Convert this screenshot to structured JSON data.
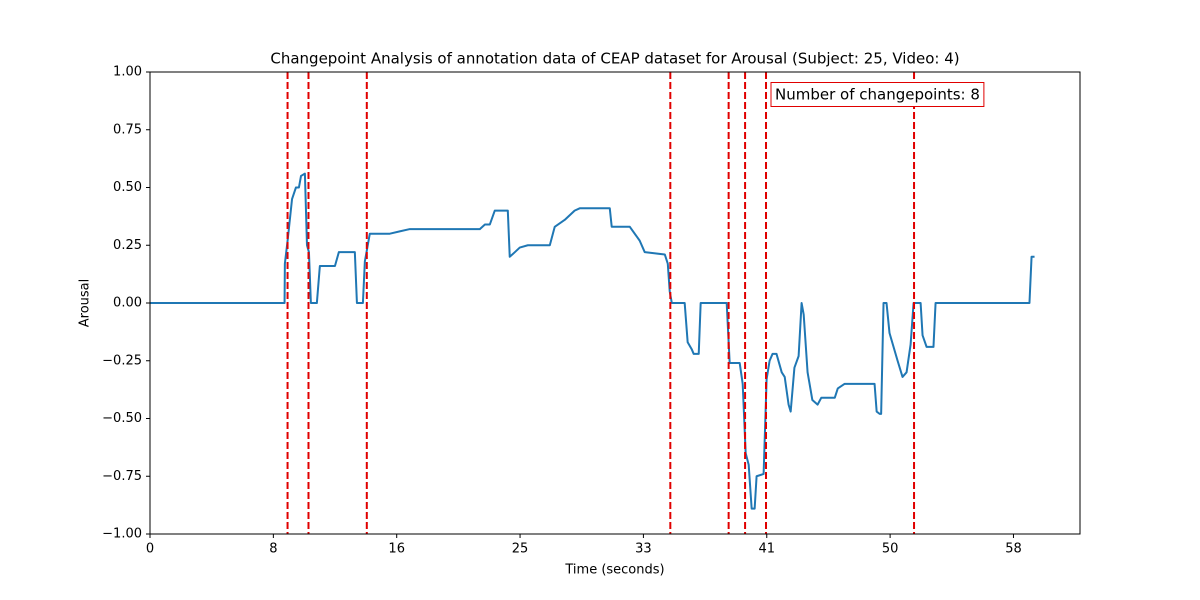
{
  "chart_data": {
    "type": "line",
    "title": "Changepoint Analysis of annotation data of CEAP dataset for Arousal (Subject: 25, Video: 4)",
    "x_label": "Time (seconds)",
    "y_label": "Arousal",
    "xlim": [
      0,
      62.2
    ],
    "ylim": [
      -1,
      1
    ],
    "xticks": [
      0,
      {
        "value": 8.25,
        "label": "8"
      },
      {
        "value": 16.5,
        "label": "16"
      },
      {
        "value": 24.75,
        "label": "25"
      },
      33,
      {
        "value": 41.25,
        "label": "41"
      },
      {
        "value": 49.5,
        "label": "50"
      },
      {
        "value": 57.75,
        "label": "58"
      }
    ],
    "yticks": [
      {
        "value": -1,
        "label": "−1.00"
      },
      {
        "value": -0.75,
        "label": "−0.75"
      },
      {
        "value": -0.5,
        "label": "−0.50"
      },
      {
        "value": -0.25,
        "label": "−0.25"
      },
      {
        "value": 0,
        "label": "0.00"
      },
      {
        "value": 0.25,
        "label": "0.25"
      },
      {
        "value": 0.5,
        "label": "0.50"
      },
      {
        "value": 0.75,
        "label": "0.75"
      },
      {
        "value": 1,
        "label": "1.00"
      }
    ],
    "x": [
      0,
      9.0,
      9.02,
      9.22,
      9.5,
      9.76,
      9.96,
      10.1,
      10.36,
      10.5,
      10.63,
      10.76,
      11.16,
      11.36,
      12.37,
      12.63,
      13.7,
      13.84,
      14.24,
      14.37,
      14.7,
      16.04,
      16.7,
      17.38,
      19.4,
      22.06,
      22.4,
      22.73,
      23.06,
      23.93,
      24.06,
      24.4,
      24.73,
      25.27,
      26.74,
      27.07,
      27.74,
      28.07,
      28.4,
      28.74,
      30.75,
      30.88,
      32.09,
      32.75,
      33.09,
      34.43,
      34.63,
      34.76,
      34.9,
      35.76,
      35.96,
      36.23,
      36.36,
      36.7,
      36.83,
      38.57,
      38.77,
      39.44,
      39.64,
      39.84,
      40.04,
      40.24,
      40.44,
      40.57,
      41.04,
      41.24,
      41.44,
      41.64,
      41.9,
      42.25,
      42.45,
      42.71,
      42.85,
      43.1,
      43.38,
      43.58,
      43.72,
      43.98,
      44.3,
      44.65,
      44.9,
      45.8,
      46.0,
      46.46,
      48.46,
      48.6,
      48.8,
      48.9,
      49.06,
      49.26,
      49.46,
      50.0,
      50.33,
      50.6,
      50.87,
      51.07,
      51.54,
      51.67,
      51.94,
      52.4,
      52.54,
      58.82,
      58.96,
      59.16
    ],
    "series": [
      {
        "color": "#1f77b4",
        "values": [
          0,
          0,
          0.17,
          0.28,
          0.45,
          0.5,
          0.5,
          0.55,
          0.56,
          0.25,
          0.22,
          0,
          0,
          0.16,
          0.16,
          0.22,
          0.22,
          0,
          0,
          0.18,
          0.3,
          0.3,
          0.31,
          0.32,
          0.32,
          0.32,
          0.34,
          0.34,
          0.4,
          0.4,
          0.2,
          0.22,
          0.24,
          0.25,
          0.25,
          0.33,
          0.36,
          0.38,
          0.4,
          0.41,
          0.41,
          0.33,
          0.33,
          0.27,
          0.22,
          0.21,
          0.17,
          0.05,
          0,
          0,
          -0.17,
          -0.2,
          -0.22,
          -0.22,
          0,
          0,
          -0.26,
          -0.26,
          -0.35,
          -0.65,
          -0.7,
          -0.89,
          -0.89,
          -0.75,
          -0.74,
          -0.33,
          -0.25,
          -0.22,
          -0.22,
          -0.3,
          -0.32,
          -0.44,
          -0.47,
          -0.28,
          -0.23,
          0,
          -0.05,
          -0.3,
          -0.42,
          -0.44,
          -0.41,
          -0.41,
          -0.37,
          -0.35,
          -0.35,
          -0.47,
          -0.48,
          -0.48,
          0,
          0,
          -0.13,
          -0.25,
          -0.32,
          -0.3,
          -0.18,
          0,
          0,
          -0.14,
          -0.19,
          -0.19,
          0,
          0,
          0.2,
          0.2
        ]
      }
    ],
    "changepoints": [
      9.2,
      10.6,
      14.5,
      34.8,
      38.7,
      39.8,
      41.2,
      51.1
    ],
    "changepoint_color": "#e00000",
    "annotation": "Number of changepoints: 8"
  }
}
